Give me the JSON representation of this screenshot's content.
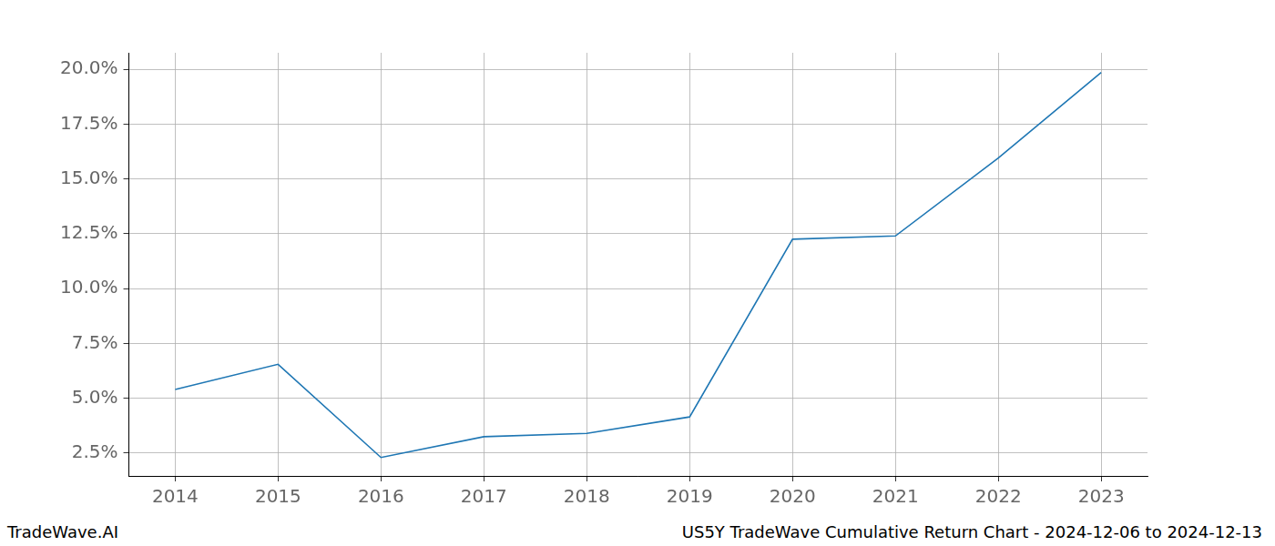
{
  "chart_data": {
    "type": "line",
    "annotations": [
      "TradeWave.AI",
      "US5Y TradeWave Cumulative Return Chart - 2024-12-06 to 2024-12-13"
    ],
    "x": [
      2014,
      2015,
      2016,
      2017,
      2018,
      2019,
      2020,
      2021,
      2022,
      2023
    ],
    "values": [
      5.4,
      6.55,
      2.3,
      3.25,
      3.4,
      4.15,
      12.25,
      12.4,
      15.95,
      19.85
    ],
    "color": "#1f77b4",
    "xlim": [
      2013.55,
      2023.45
    ],
    "xticks": [
      2014,
      2015,
      2016,
      2017,
      2018,
      2019,
      2020,
      2021,
      2022,
      2023
    ],
    "ylim": [
      1.46,
      20.75
    ],
    "yticks": [
      {
        "value": 2.5,
        "label": "2.5%"
      },
      {
        "value": 5.0,
        "label": "5.0%"
      },
      {
        "value": 7.5,
        "label": "7.5%"
      },
      {
        "value": 10.0,
        "label": "10.0%"
      },
      {
        "value": 12.5,
        "label": "12.5%"
      },
      {
        "value": 15.0,
        "label": "15.0%"
      },
      {
        "value": 17.5,
        "label": "17.5%"
      },
      {
        "value": 20.0,
        "label": "20.0%"
      }
    ],
    "grid": true
  }
}
